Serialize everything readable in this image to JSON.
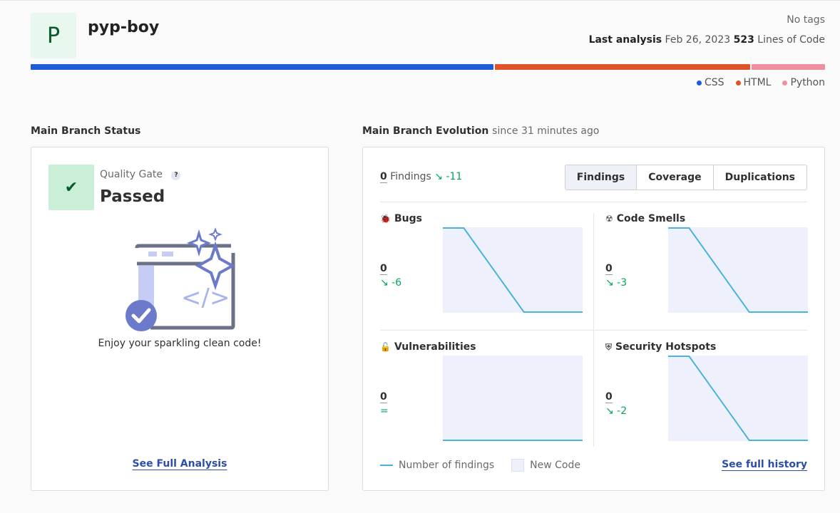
{
  "project": {
    "avatar_letter": "P",
    "name": "pyp-boy",
    "tags": "No tags",
    "last_analysis_label": "Last analysis",
    "last_analysis_date": "Feb 26, 2023",
    "loc": "523",
    "loc_label": "Lines of Code"
  },
  "languages": [
    {
      "name": "CSS",
      "color": "#1f5bd8",
      "share": 0.585
    },
    {
      "name": "HTML",
      "color": "#e0522b",
      "share": 0.322
    },
    {
      "name": "Python",
      "color": "#ef8fa3",
      "share": 0.093
    }
  ],
  "branch_status": {
    "title": "Main Branch Status",
    "quality_gate_label": "Quality Gate",
    "help": "?",
    "status": "Passed",
    "message": "Enjoy your sparkling clean code!",
    "link": "See Full Analysis"
  },
  "evolution": {
    "title": "Main Branch Evolution",
    "since": "since 31 minutes ago",
    "findings_count": "0",
    "findings_label": "Findings",
    "findings_trend": "↘ -11",
    "tabs": [
      "Findings",
      "Coverage",
      "Duplications"
    ],
    "active_tab": "Findings",
    "metrics": [
      {
        "name": "Bugs",
        "icon": "bug-icon",
        "value": "0",
        "trend": "↘ -6",
        "series": [
          6,
          6,
          0,
          0
        ]
      },
      {
        "name": "Code Smells",
        "icon": "code-smell-icon",
        "value": "0",
        "trend": "↘ -3",
        "series": [
          3,
          3,
          0,
          0
        ]
      },
      {
        "name": "Vulnerabilities",
        "icon": "lock-icon",
        "value": "0",
        "trend": "=",
        "series": [
          0,
          0,
          0,
          0
        ]
      },
      {
        "name": "Security Hotspots",
        "icon": "shield-icon",
        "value": "0",
        "trend": "↘ -2",
        "series": [
          2,
          2,
          0,
          0
        ]
      }
    ],
    "legend_line": "Number of findings",
    "legend_box": "New Code",
    "history_link": "See full history"
  },
  "colors": {
    "accent": "#2d4ea7",
    "trend_good": "#00a858",
    "series_line": "#4ab3dd",
    "new_code_fill": "#eef1fb"
  }
}
